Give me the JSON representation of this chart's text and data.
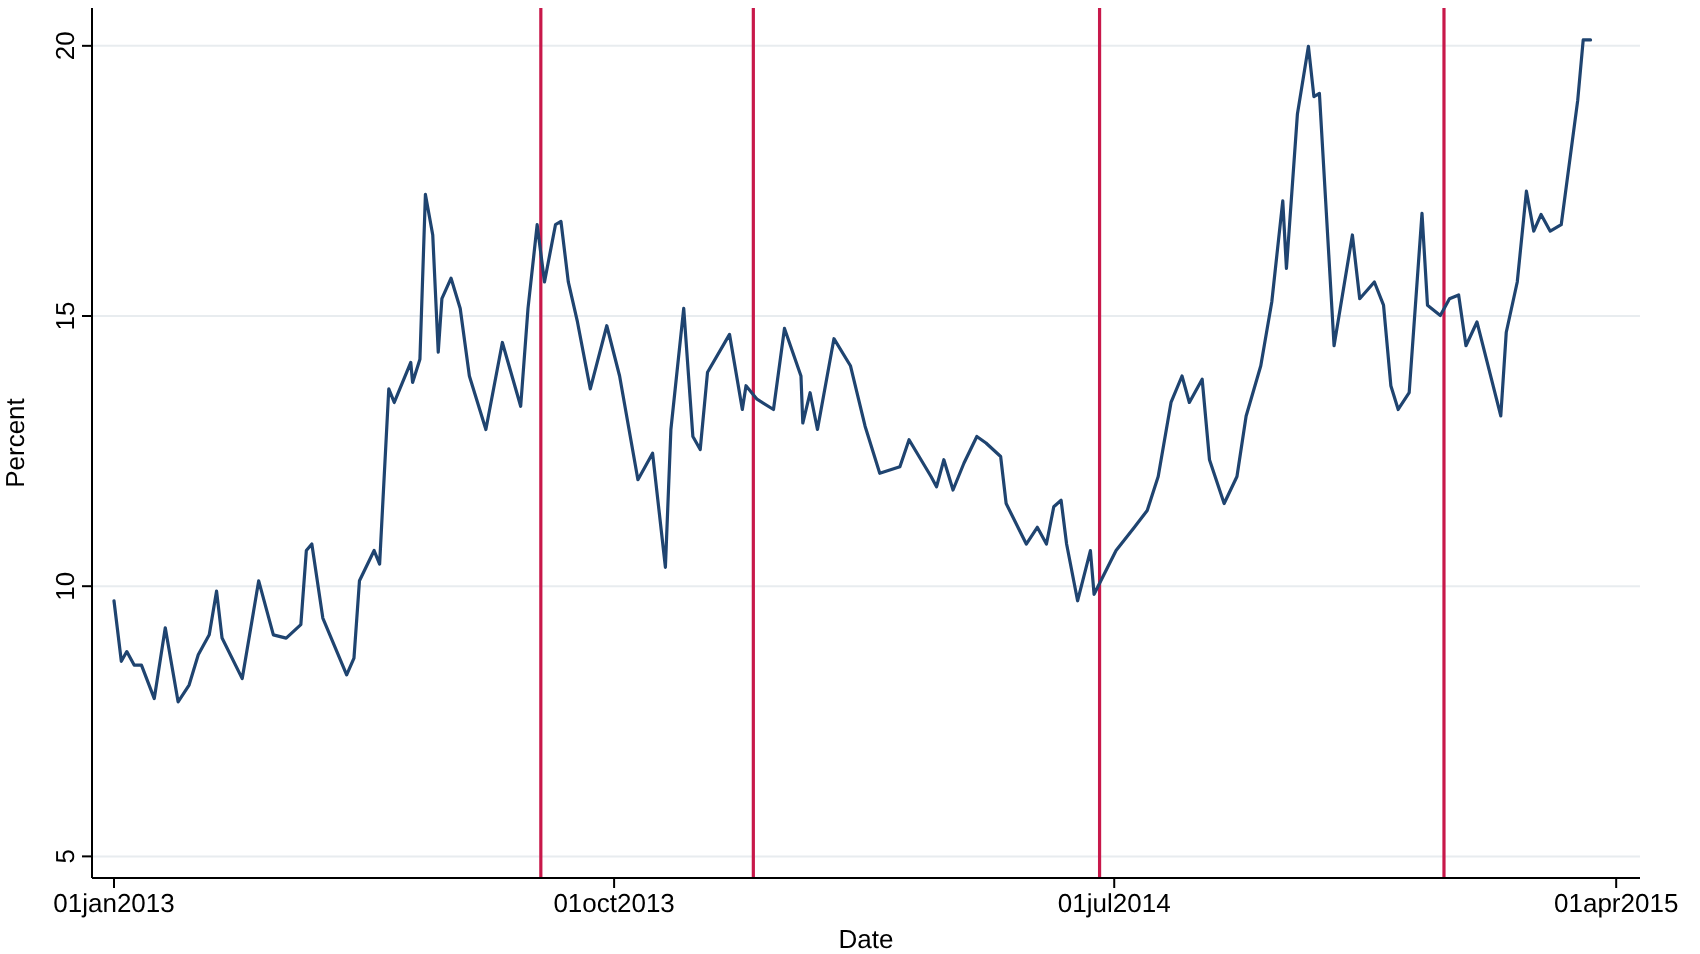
{
  "chart_data": {
    "type": "line",
    "xlabel": "Date",
    "ylabel": "Percent",
    "xlim": [
      "2012-12-20",
      "2015-04-14"
    ],
    "ylim": [
      4.6,
      20.7
    ],
    "xticks": [
      {
        "value": "2013-01-01",
        "label": "01jan2013"
      },
      {
        "value": "2013-10-01",
        "label": "01oct2013"
      },
      {
        "value": "2014-07-01",
        "label": "01jul2014"
      },
      {
        "value": "2015-04-01",
        "label": "01apr2015"
      }
    ],
    "yticks": [
      5,
      10,
      15,
      20
    ],
    "grid": "y",
    "marker": "none",
    "line_style": "solid",
    "ref_lines": [
      {
        "axis": "x",
        "value": "2013-08-22",
        "color": "#c8184a"
      },
      {
        "axis": "x",
        "value": "2013-12-16",
        "color": "#c8184a"
      },
      {
        "axis": "x",
        "value": "2014-06-23",
        "color": "#c8184a"
      },
      {
        "axis": "x",
        "value": "2014-12-28",
        "color": "#c8184a"
      }
    ],
    "series": [
      {
        "color": "#1f4470",
        "x": [
          "2013-01-01",
          "2013-01-05",
          "2013-01-08",
          "2013-01-12",
          "2013-01-16",
          "2013-01-23",
          "2013-01-29",
          "2013-02-05",
          "2013-02-11",
          "2013-02-16",
          "2013-02-22",
          "2013-02-26",
          "2013-03-01",
          "2013-03-12",
          "2013-03-21",
          "2013-03-29",
          "2013-04-05",
          "2013-04-13",
          "2013-04-16",
          "2013-04-19",
          "2013-04-25",
          "2013-05-08",
          "2013-05-12",
          "2013-05-15",
          "2013-05-23",
          "2013-05-26",
          "2013-05-31",
          "2013-06-03",
          "2013-06-12",
          "2013-06-13",
          "2013-06-17",
          "2013-06-20",
          "2013-06-24",
          "2013-06-27",
          "2013-06-29",
          "2013-07-04",
          "2013-07-09",
          "2013-07-14",
          "2013-07-23",
          "2013-08-01",
          "2013-08-11",
          "2013-08-15",
          "2013-08-20",
          "2013-08-24",
          "2013-08-30",
          "2013-09-02",
          "2013-09-06",
          "2013-09-11",
          "2013-09-18",
          "2013-09-27",
          "2013-10-04",
          "2013-10-14",
          "2013-10-22",
          "2013-10-29",
          "2013-11-01",
          "2013-11-08",
          "2013-11-13",
          "2013-11-17",
          "2013-11-21",
          "2013-12-03",
          "2013-12-10",
          "2013-12-12",
          "2013-12-18",
          "2013-12-27",
          "2014-01-02",
          "2014-01-11",
          "2014-01-12",
          "2014-01-16",
          "2014-01-20",
          "2014-01-29",
          "2014-02-07",
          "2014-02-15",
          "2014-02-23",
          "2014-03-06",
          "2014-03-11",
          "2014-03-23",
          "2014-03-26",
          "2014-03-30",
          "2014-04-04",
          "2014-04-10",
          "2014-04-17",
          "2014-04-22",
          "2014-04-30",
          "2014-05-03",
          "2014-05-14",
          "2014-05-20",
          "2014-05-25",
          "2014-05-29",
          "2014-06-02",
          "2014-06-05",
          "2014-06-11",
          "2014-06-18",
          "2014-06-20",
          "2014-07-02",
          "2014-07-12",
          "2014-07-19",
          "2014-07-25",
          "2014-08-01",
          "2014-08-07",
          "2014-08-11",
          "2014-08-18",
          "2014-08-22",
          "2014-08-30",
          "2014-09-06",
          "2014-09-11",
          "2014-09-19",
          "2014-09-25",
          "2014-10-01",
          "2014-10-03",
          "2014-10-09",
          "2014-10-15",
          "2014-10-18",
          "2014-10-21",
          "2014-10-29",
          "2014-11-08",
          "2014-11-12",
          "2014-11-20",
          "2014-11-25",
          "2014-11-29",
          "2014-12-03",
          "2014-12-09",
          "2014-12-16",
          "2014-12-19",
          "2014-12-26",
          "2014-12-31",
          "2015-01-05",
          "2015-01-09",
          "2015-01-15",
          "2015-01-28",
          "2015-01-31",
          "2015-02-06",
          "2015-02-11",
          "2015-02-15",
          "2015-02-19",
          "2015-02-24",
          "2015-03-02",
          "2015-03-11",
          "2015-03-14",
          "2015-03-18"
        ],
        "values": [
          9.73,
          8.61,
          8.79,
          8.54,
          8.54,
          7.92,
          9.23,
          7.86,
          8.17,
          8.73,
          9.1,
          9.91,
          9.04,
          8.29,
          10.1,
          9.1,
          9.04,
          9.29,
          10.66,
          10.78,
          9.41,
          8.36,
          8.67,
          10.1,
          10.66,
          10.41,
          13.65,
          13.4,
          14.14,
          13.77,
          14.2,
          17.25,
          16.5,
          14.33,
          15.32,
          15.7,
          15.14,
          13.89,
          12.9,
          14.51,
          13.33,
          15.14,
          16.69,
          15.63,
          16.69,
          16.75,
          15.63,
          14.89,
          13.65,
          14.82,
          13.89,
          11.97,
          12.46,
          10.35,
          12.9,
          15.14,
          12.77,
          12.53,
          13.96,
          14.66,
          13.27,
          13.71,
          13.46,
          13.27,
          14.77,
          13.89,
          13.02,
          13.58,
          12.9,
          14.58,
          14.08,
          12.96,
          12.09,
          12.21,
          12.71,
          12.03,
          11.84,
          12.34,
          11.78,
          12.28,
          12.77,
          12.65,
          12.4,
          11.53,
          10.78,
          11.09,
          10.78,
          11.47,
          11.59,
          10.78,
          9.73,
          10.66,
          9.85,
          10.66,
          11.09,
          11.4,
          12.03,
          13.4,
          13.89,
          13.4,
          13.83,
          12.34,
          11.53,
          12.03,
          13.15,
          14.08,
          15.26,
          17.13,
          15.88,
          18.74,
          19.99,
          19.06,
          19.12,
          14.45,
          16.5,
          15.32,
          15.63,
          15.2,
          13.71,
          13.27,
          13.58,
          16.9,
          15.2,
          15.01,
          15.32,
          15.39,
          14.45,
          14.89,
          13.15,
          14.7,
          15.63,
          17.31,
          16.57,
          16.88,
          16.57,
          16.69,
          18.99,
          20.11,
          20.11
        ]
      }
    ]
  }
}
